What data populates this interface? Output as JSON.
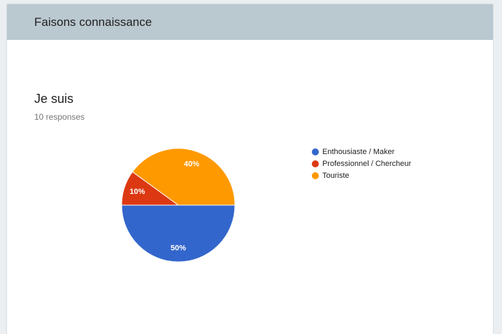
{
  "header": {
    "title": "Faisons connaissance"
  },
  "chart_data": {
    "type": "pie",
    "title": "Je suis",
    "subtitle": "10 responses",
    "categories": [
      "Enthousiaste / Maker",
      "Professionnel / Chercheur",
      "Touriste"
    ],
    "values": [
      50,
      10,
      40
    ],
    "value_labels": [
      "50%",
      "10%",
      "40%"
    ],
    "colors": [
      "#3366cc",
      "#dc3912",
      "#ff9900"
    ],
    "legend": "right"
  }
}
